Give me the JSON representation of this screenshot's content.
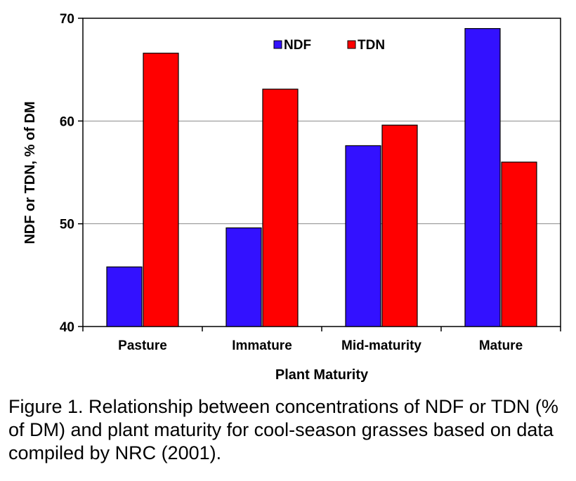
{
  "chart_data": {
    "type": "bar",
    "categories": [
      "Pasture",
      "Immature",
      "Mid-maturity",
      "Mature"
    ],
    "series": [
      {
        "name": "NDF",
        "values": [
          45.8,
          49.6,
          57.6,
          69.0
        ],
        "color": "#3311ff"
      },
      {
        "name": "TDN",
        "values": [
          66.6,
          63.1,
          59.6,
          56.0
        ],
        "color": "#ff0000"
      }
    ],
    "ylim": [
      40,
      70
    ],
    "yticks": [
      "40",
      "50",
      "60",
      "70"
    ],
    "xlabel": "Plant Maturity",
    "ylabel": "NDF or TDN, % of DM",
    "grid": true,
    "legend_position": "top-center"
  },
  "caption": "Figure 1. Relationship between concentrations of NDF or TDN (% of DM) and plant maturity for cool-season grasses based on data compiled by NRC (2001)."
}
